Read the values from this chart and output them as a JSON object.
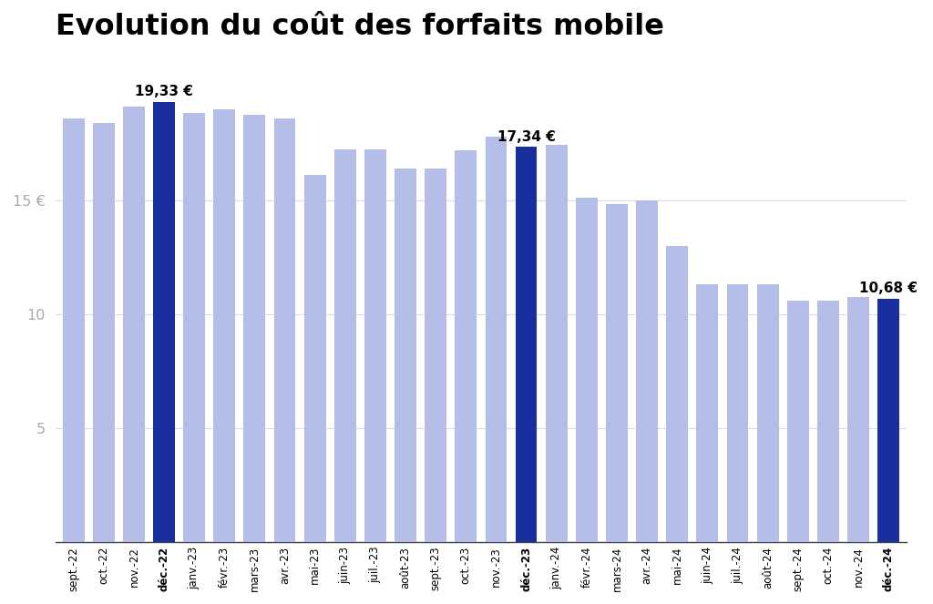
{
  "title": "Evolution du coût des forfaits mobile",
  "categories": [
    "sept.-22",
    "oct.-22",
    "nov.-22",
    "déc.-22",
    "janv.-23",
    "févr.-23",
    "mars-23",
    "avr.-23",
    "mai-23",
    "juin-23",
    "juil.-23",
    "août-23",
    "sept.-23",
    "oct.-23",
    "nov.-23",
    "déc.-23",
    "janv.-24",
    "févr.-24",
    "mars-24",
    "avr.-24",
    "mai-24",
    "juin-24",
    "juil.-24",
    "août-24",
    "sept.-24",
    "oct.-24",
    "nov.-24",
    "déc.-24"
  ],
  "values": [
    18.6,
    18.4,
    19.1,
    19.33,
    18.85,
    19.0,
    18.75,
    18.6,
    16.1,
    17.25,
    17.25,
    16.4,
    16.4,
    17.2,
    17.8,
    17.34,
    17.45,
    15.1,
    14.85,
    15.0,
    13.0,
    11.3,
    11.3,
    11.3,
    10.6,
    10.6,
    10.75,
    10.68
  ],
  "highlight_indices": [
    3,
    15,
    27
  ],
  "highlight_color": "#1a2f9e",
  "normal_color": "#b3bde8",
  "annotated": {
    "3": "19,33 €",
    "15": "17,34 €",
    "27": "10,68 €"
  },
  "bold_tick_indices": [
    3,
    15,
    27
  ],
  "ylim": [
    0,
    21.5
  ],
  "yticks": [
    5,
    10,
    15
  ],
  "ytick_labels": [
    "5",
    "10",
    "15 €"
  ],
  "ytick_color": "#aaaaaa",
  "grid_color": "#dddddd",
  "background_color": "#ffffff",
  "title_fontsize": 23,
  "bar_width": 0.72,
  "annotation_fontsize": 11
}
